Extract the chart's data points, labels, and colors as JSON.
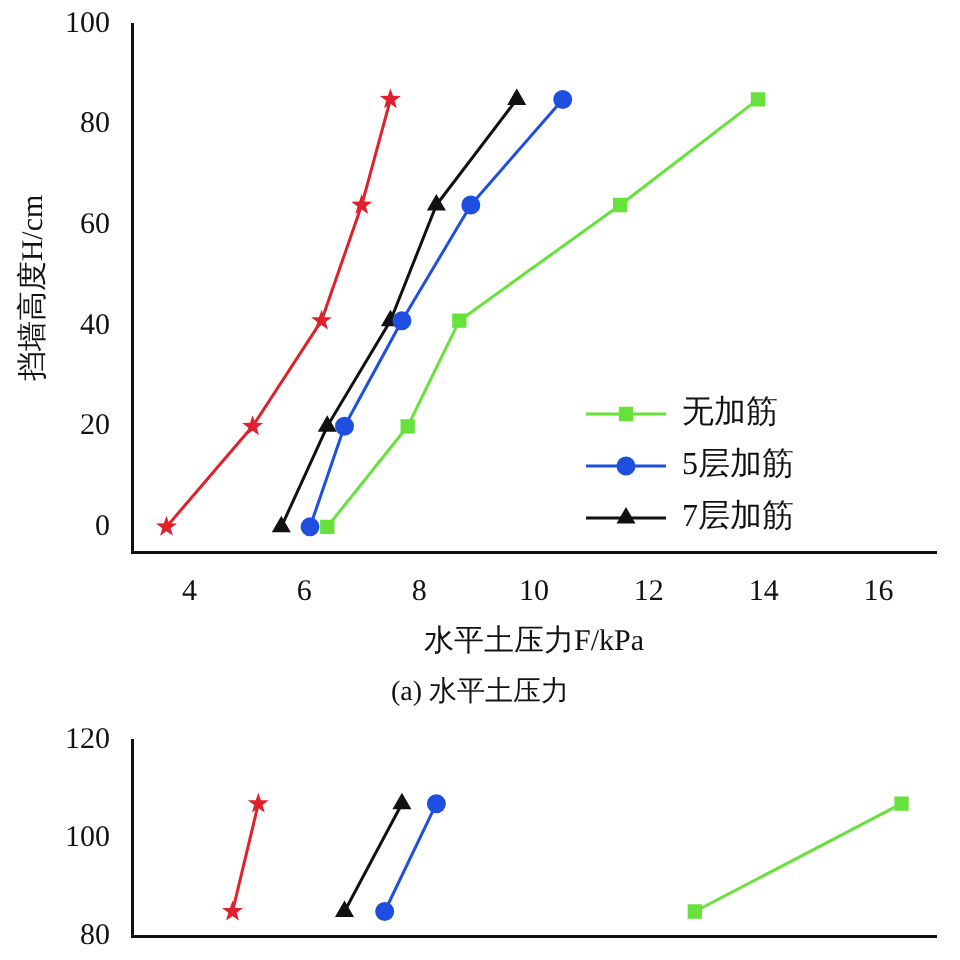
{
  "chart_data": [
    {
      "type": "line",
      "xlabel": "水平土压力F/kPa",
      "ylabel": "挡墙高度H/cm",
      "annotations": [
        "(a) 水平土压力"
      ],
      "xlim": [
        3,
        17
      ],
      "xticks": [
        4,
        6,
        8,
        10,
        12,
        14,
        16
      ],
      "ylim": [
        -5,
        100
      ],
      "yticks": [
        0,
        20,
        40,
        60,
        80,
        100
      ],
      "grid": false,
      "legend": "bottom right",
      "series": [
        {
          "name": "无加筋",
          "color": "#66e23a",
          "marker": "square",
          "x": [
            6.4,
            7.8,
            8.7,
            11.5,
            13.9
          ],
          "values": [
            0,
            20,
            41,
            64,
            85
          ]
        },
        {
          "name": "5层加筋",
          "color": "#1f4fe0",
          "marker": "circle",
          "x": [
            6.1,
            6.7,
            7.7,
            8.9,
            10.5
          ],
          "values": [
            0,
            20,
            41,
            64,
            85
          ]
        },
        {
          "name": "7层加筋",
          "color": "#111111",
          "marker": "triangle",
          "x": [
            5.6,
            6.4,
            7.5,
            8.3,
            9.7
          ],
          "values": [
            0,
            20,
            41,
            64,
            85
          ]
        },
        {
          "color": "#e0202a",
          "marker": "star",
          "x": [
            3.6,
            5.1,
            6.3,
            7.0,
            7.5
          ],
          "values": [
            0,
            20,
            41,
            64,
            85
          ]
        }
      ]
    },
    {
      "type": "line",
      "xlim": [
        3,
        17
      ],
      "ylim": [
        80,
        120
      ],
      "yticks": [
        80,
        100,
        120
      ],
      "grid": false,
      "tick_labels": "y",
      "series": [
        {
          "color": "#66e23a",
          "marker": "square",
          "x": [
            12.8,
            16.4
          ],
          "values": [
            85,
            107
          ]
        },
        {
          "color": "#1f4fe0",
          "marker": "circle",
          "x": [
            7.4,
            8.3
          ],
          "values": [
            85,
            107
          ]
        },
        {
          "color": "#111111",
          "marker": "triangle",
          "x": [
            6.7,
            7.7
          ],
          "values": [
            85,
            107
          ]
        },
        {
          "color": "#e0202a",
          "marker": "star",
          "x": [
            4.75,
            5.2
          ],
          "values": [
            85,
            107
          ]
        }
      ]
    }
  ]
}
